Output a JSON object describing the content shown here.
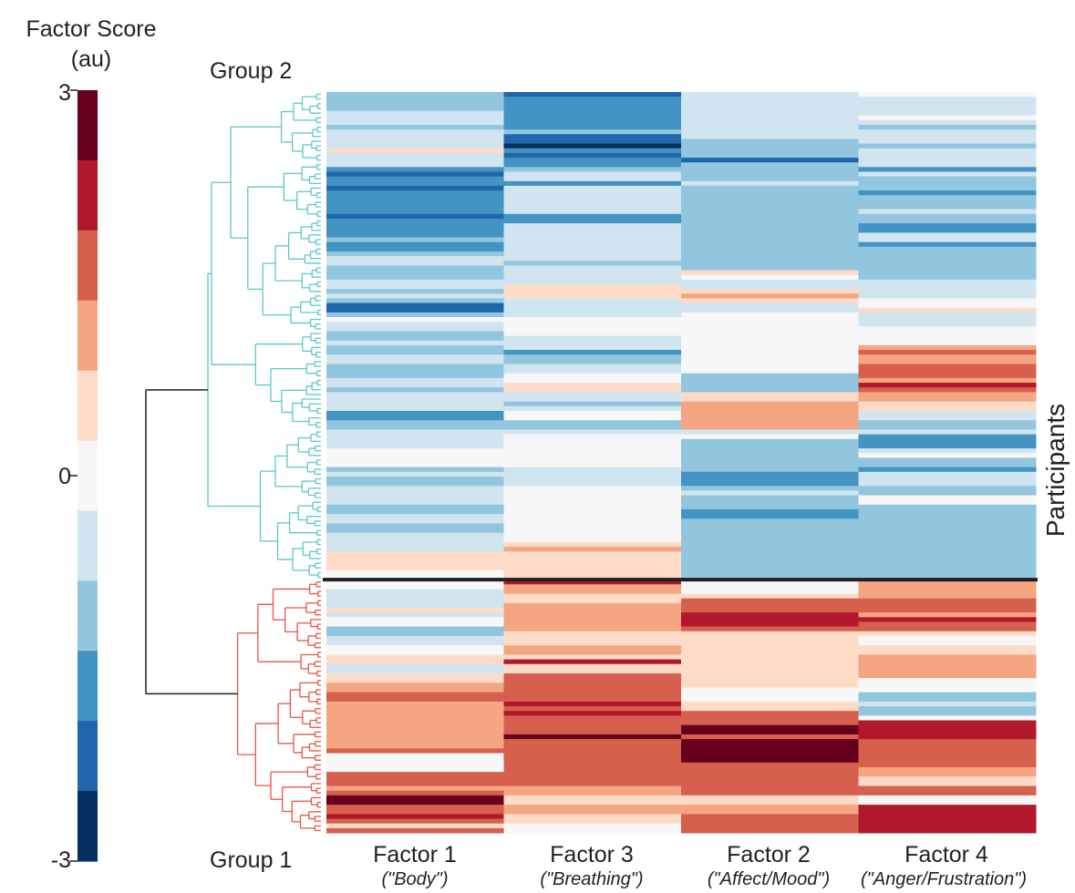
{
  "chart_data": {
    "type": "heatmap",
    "colorbar": {
      "title_line1": "Factor Score",
      "title_line2": "(au)",
      "max_label": "3",
      "mid_label": "0",
      "min_label": "-3",
      "range": [
        -3,
        3
      ],
      "colors_top_to_bottom": [
        "#67001f",
        "#b2182b",
        "#d6604d",
        "#f4a582",
        "#fddbc7",
        "#f7f7f7",
        "#d1e5f0",
        "#92c5de",
        "#4393c3",
        "#2166ac",
        "#053061"
      ]
    },
    "group_labels": {
      "top": "Group 2",
      "bottom": "Group 1"
    },
    "ylabel": "Participants",
    "columns": [
      {
        "name": "Factor 1",
        "sub": "(\"Body\")"
      },
      {
        "name": "Factor 3",
        "sub": "(\"Breathing\")"
      },
      {
        "name": "Factor 2",
        "sub": "(\"Affect/Mood\")"
      },
      {
        "name": "Factor 4",
        "sub": "(\"Anger/Frustration\")"
      }
    ],
    "group_rows": {
      "group2": 104,
      "group1": 54
    },
    "segments": [
      [
        [
          0,
          -1
        ],
        [
          4,
          -0.8
        ],
        [
          5,
          -0.3
        ],
        [
          7,
          -1.2
        ],
        [
          8,
          -0.3
        ],
        [
          10,
          -0.8
        ],
        [
          12,
          0.6
        ],
        [
          13,
          -0.3
        ],
        [
          14,
          -0.8
        ],
        [
          16,
          -1.5
        ],
        [
          17,
          -2
        ],
        [
          18,
          -1.5
        ],
        [
          20,
          -2.2
        ],
        [
          21,
          -1.5
        ],
        [
          26,
          -2
        ],
        [
          27,
          -1.5
        ],
        [
          31,
          -1
        ],
        [
          32,
          -1.5
        ],
        [
          34,
          -1.2
        ],
        [
          35,
          -0.8
        ],
        [
          36,
          -0.3
        ],
        [
          37,
          -1.2
        ],
        [
          40,
          -0.3
        ],
        [
          42,
          -1
        ],
        [
          43,
          -0.3
        ],
        [
          44,
          -1
        ],
        [
          45,
          -2
        ],
        [
          47,
          -1
        ],
        [
          48,
          0
        ],
        [
          49,
          -0.5
        ],
        [
          51,
          -1.2
        ],
        [
          53,
          -0.8
        ],
        [
          54,
          -1
        ],
        [
          56,
          -0.4
        ],
        [
          58,
          -1.3
        ],
        [
          61,
          -0.6
        ],
        [
          63,
          -1
        ],
        [
          64,
          -0.4
        ],
        [
          66,
          -0.8
        ],
        [
          67,
          -0.3
        ],
        [
          68,
          -1.5
        ],
        [
          70,
          -1
        ],
        [
          72,
          -0.8
        ],
        [
          73,
          -0.3
        ],
        [
          75,
          -0.8
        ],
        [
          76,
          0
        ],
        [
          80,
          -1.2
        ],
        [
          81,
          -0.8
        ],
        [
          82,
          -1.2
        ],
        [
          84,
          -0.3
        ],
        [
          86,
          -0.8
        ],
        [
          88,
          -1
        ],
        [
          90,
          -0.3
        ],
        [
          92,
          -1
        ],
        [
          94,
          -0.3
        ],
        [
          96,
          -0.4
        ],
        [
          98,
          0.6
        ],
        [
          100,
          0.3
        ],
        [
          102,
          0
        ],
        [
          104,
          0
        ],
        [
          106,
          -0.3
        ],
        [
          107,
          -0.8
        ],
        [
          108,
          -0.3
        ],
        [
          110,
          0.6
        ],
        [
          111,
          -0.3
        ],
        [
          112,
          0
        ],
        [
          114,
          -1
        ],
        [
          116,
          -0.4
        ],
        [
          118,
          0
        ],
        [
          120,
          0.6
        ],
        [
          122,
          -0.3
        ],
        [
          124,
          0.6
        ],
        [
          126,
          1
        ],
        [
          128,
          1.5
        ],
        [
          130,
          1
        ],
        [
          140,
          1.5
        ],
        [
          141,
          0
        ],
        [
          143,
          0
        ],
        [
          145,
          1.7
        ],
        [
          148,
          1.1
        ],
        [
          149,
          1.7
        ],
        [
          150,
          2.6
        ],
        [
          152,
          1.8
        ],
        [
          154,
          2.4
        ],
        [
          155,
          1.8
        ],
        [
          156,
          0.6
        ],
        [
          157,
          1.6
        ]
      ],
      [
        [
          0,
          -2
        ],
        [
          1,
          -1.6
        ],
        [
          4,
          -1.5
        ],
        [
          8,
          -1.1
        ],
        [
          9,
          -2
        ],
        [
          11,
          -2.6
        ],
        [
          12,
          -1.8
        ],
        [
          13,
          -2
        ],
        [
          14,
          -1.5
        ],
        [
          16,
          -1
        ],
        [
          17,
          -0.3
        ],
        [
          19,
          -1.6
        ],
        [
          20,
          -0.3
        ],
        [
          22,
          -0.8
        ],
        [
          26,
          -1.5
        ],
        [
          28,
          -0.8
        ],
        [
          36,
          -1
        ],
        [
          37,
          -0.5
        ],
        [
          40,
          -0.8
        ],
        [
          41,
          0.6
        ],
        [
          43,
          0.3
        ],
        [
          44,
          -0.3
        ],
        [
          47,
          -0.3
        ],
        [
          48,
          0
        ],
        [
          50,
          0
        ],
        [
          52,
          -0.3
        ],
        [
          54,
          -0.8
        ],
        [
          55,
          -1.5
        ],
        [
          56,
          -1
        ],
        [
          58,
          -0.3
        ],
        [
          60,
          0
        ],
        [
          62,
          0.3
        ],
        [
          64,
          -0.3
        ],
        [
          66,
          -1
        ],
        [
          67,
          -0.6
        ],
        [
          68,
          -0.2
        ],
        [
          70,
          -1.2
        ],
        [
          72,
          -0.6
        ],
        [
          73,
          0
        ],
        [
          75,
          0
        ],
        [
          80,
          -0.3
        ],
        [
          84,
          0
        ],
        [
          88,
          0
        ],
        [
          96,
          0.6
        ],
        [
          97,
          1.2
        ],
        [
          98,
          0.6
        ],
        [
          100,
          0.3
        ],
        [
          102,
          0.6
        ],
        [
          103,
          0.3
        ],
        [
          104,
          2
        ],
        [
          105,
          1.2
        ],
        [
          107,
          0.6
        ],
        [
          109,
          1.1
        ],
        [
          111,
          1.1
        ],
        [
          115,
          0.6
        ],
        [
          118,
          1.2
        ],
        [
          120,
          0.6
        ],
        [
          121,
          2
        ],
        [
          122,
          0.3
        ],
        [
          124,
          1.5
        ],
        [
          128,
          1.6
        ],
        [
          130,
          2.4
        ],
        [
          131,
          1.5
        ],
        [
          132,
          2.4
        ],
        [
          133,
          1.8
        ],
        [
          134,
          1.6
        ],
        [
          137,
          2.8
        ],
        [
          138,
          1.5
        ],
        [
          148,
          1.1
        ],
        [
          150,
          0.6
        ],
        [
          152,
          1.2
        ],
        [
          154,
          0.6
        ],
        [
          156,
          0
        ]
      ],
      [
        [
          0,
          -0.6
        ],
        [
          10,
          -1.1
        ],
        [
          14,
          -2
        ],
        [
          15,
          -1.1
        ],
        [
          19,
          -0.6
        ],
        [
          20,
          -1.2
        ],
        [
          38,
          0.6
        ],
        [
          39,
          0
        ],
        [
          40,
          -0.3
        ],
        [
          42,
          0.3
        ],
        [
          43,
          1.1
        ],
        [
          44,
          0.6
        ],
        [
          45,
          -0.3
        ],
        [
          47,
          0
        ],
        [
          60,
          -1.2
        ],
        [
          62,
          -1
        ],
        [
          64,
          0.6
        ],
        [
          66,
          1.3
        ],
        [
          70,
          1
        ],
        [
          72,
          -0.3
        ],
        [
          73,
          0
        ],
        [
          74,
          -1
        ],
        [
          75,
          -1.3
        ],
        [
          76,
          -1
        ],
        [
          80,
          -1.2
        ],
        [
          81,
          -1.6
        ],
        [
          84,
          -1
        ],
        [
          85,
          -0.3
        ],
        [
          86,
          -1
        ],
        [
          88,
          -1.1
        ],
        [
          89,
          -1.6
        ],
        [
          91,
          -1
        ],
        [
          95,
          -1.1
        ],
        [
          104,
          0
        ],
        [
          107,
          0.3
        ],
        [
          108,
          1.7
        ],
        [
          111,
          2
        ],
        [
          114,
          1.5
        ],
        [
          115,
          0.4
        ],
        [
          117,
          0.6
        ],
        [
          123,
          0.6
        ],
        [
          127,
          0
        ],
        [
          130,
          0.6
        ],
        [
          132,
          1.5
        ],
        [
          135,
          2.6
        ],
        [
          137,
          1.8
        ],
        [
          138,
          2.8
        ],
        [
          143,
          1.5
        ],
        [
          148,
          1.8
        ],
        [
          150,
          0.6
        ],
        [
          152,
          1
        ],
        [
          154,
          1.6
        ]
      ],
      [
        [
          0,
          -0.2
        ],
        [
          1,
          -0.8
        ],
        [
          5,
          0
        ],
        [
          6,
          -0.3
        ],
        [
          7,
          -1.3
        ],
        [
          8,
          -0.4
        ],
        [
          9,
          -0.8
        ],
        [
          11,
          -1.2
        ],
        [
          12,
          -0.3
        ],
        [
          13,
          -0.8
        ],
        [
          16,
          -1.5
        ],
        [
          17,
          -0.8
        ],
        [
          18,
          -1
        ],
        [
          21,
          -1.6
        ],
        [
          22,
          -1
        ],
        [
          25,
          -0.4
        ],
        [
          26,
          -1
        ],
        [
          28,
          -1.5
        ],
        [
          30,
          -0.8
        ],
        [
          32,
          -1.4
        ],
        [
          33,
          -1
        ],
        [
          36,
          -1
        ],
        [
          40,
          -0.4
        ],
        [
          44,
          0
        ],
        [
          46,
          0.4
        ],
        [
          47,
          -0.8
        ],
        [
          48,
          -0.3
        ],
        [
          50,
          0
        ],
        [
          54,
          1.1
        ],
        [
          55,
          1.6
        ],
        [
          56,
          1
        ],
        [
          58,
          1.5
        ],
        [
          60,
          1.7
        ],
        [
          61,
          1.2
        ],
        [
          62,
          2.1
        ],
        [
          63,
          1.5
        ],
        [
          64,
          1
        ],
        [
          66,
          0.6
        ],
        [
          68,
          -0.4
        ],
        [
          70,
          -1.1
        ],
        [
          72,
          -0.6
        ],
        [
          73,
          -1.5
        ],
        [
          76,
          -0.6
        ],
        [
          77,
          0
        ],
        [
          78,
          -1
        ],
        [
          80,
          -1.5
        ],
        [
          81,
          -0.8
        ],
        [
          82,
          -0.4
        ],
        [
          84,
          -1.2
        ],
        [
          86,
          0
        ],
        [
          88,
          -1
        ],
        [
          104,
          1.1
        ],
        [
          108,
          1.6
        ],
        [
          111,
          1.2
        ],
        [
          112,
          2
        ],
        [
          113,
          1.5
        ],
        [
          115,
          0.6
        ],
        [
          116,
          0
        ],
        [
          118,
          0.6
        ],
        [
          120,
          1.1
        ],
        [
          125,
          0
        ],
        [
          128,
          -1
        ],
        [
          130,
          -0.3
        ],
        [
          131,
          -1.2
        ],
        [
          133,
          0
        ],
        [
          134,
          2
        ],
        [
          137,
          2.4
        ],
        [
          138,
          1.5
        ],
        [
          144,
          1.1
        ],
        [
          146,
          0.6
        ],
        [
          148,
          1.5
        ],
        [
          150,
          0
        ],
        [
          152,
          2
        ]
      ]
    ],
    "tree": {
      "top_group": {
        "leaf_span": [
          0,
          103
        ],
        "color": "#5bc8c8"
      },
      "bottom_group": {
        "leaf_span": [
          104,
          157
        ],
        "color": "#e8534a"
      },
      "root_color": "#231f20"
    }
  }
}
